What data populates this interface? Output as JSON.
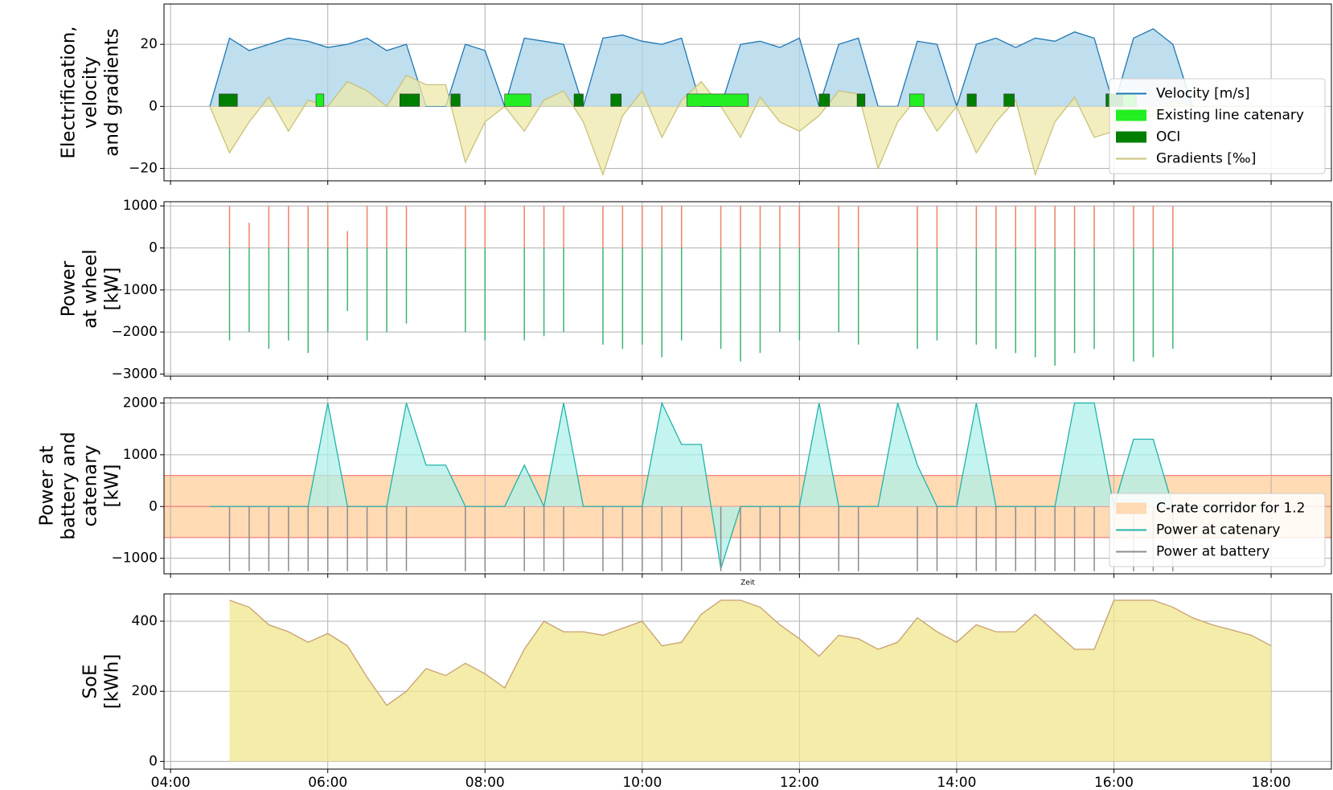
{
  "chart_data": [
    {
      "type": "line",
      "ylabel": [
        "Electrification,",
        "velocity",
        "and gradients"
      ],
      "xlim": [
        "03:55",
        "18:46"
      ],
      "xticks": [
        "04:00",
        "06:00",
        "08:00",
        "10:00",
        "12:00",
        "14:00",
        "16:00",
        "18:00"
      ],
      "ylim": [
        -24,
        33
      ],
      "yticks": [
        {
          "value": -20,
          "label": "−20"
        },
        0,
        20
      ],
      "grid": true,
      "legend": "lower right",
      "x": [
        "04:30",
        "04:45",
        "05:00",
        "05:15",
        "05:30",
        "05:45",
        "06:00",
        "06:15",
        "06:30",
        "06:45",
        "07:00",
        "07:15",
        "07:30",
        "07:45",
        "08:00",
        "08:15",
        "08:30",
        "08:45",
        "09:00",
        "09:15",
        "09:30",
        "09:45",
        "10:00",
        "10:15",
        "10:30",
        "10:45",
        "11:00",
        "11:15",
        "11:30",
        "11:45",
        "12:00",
        "12:15",
        "12:30",
        "12:45",
        "13:00",
        "13:15",
        "13:30",
        "13:45",
        "14:00",
        "14:15",
        "14:30",
        "14:45",
        "15:00",
        "15:15",
        "15:30",
        "15:45",
        "16:00",
        "16:15",
        "16:30",
        "16:45",
        "17:00",
        "17:15",
        "17:30",
        "17:45",
        "18:00"
      ],
      "series": [
        {
          "name": "Velocity [m/s]",
          "style": "area",
          "color": "#1f77b4",
          "fill": "#a9d3e8",
          "values": [
            0,
            22,
            18,
            20,
            22,
            21,
            19,
            20,
            22,
            18,
            20,
            0,
            0,
            20,
            18,
            0,
            22,
            21,
            20,
            0,
            22,
            23,
            21,
            20,
            22,
            0,
            0,
            20,
            21,
            19,
            22,
            0,
            20,
            22,
            0,
            0,
            21,
            20,
            0,
            20,
            22,
            19,
            22,
            21,
            24,
            22,
            0,
            22,
            25,
            20,
            0,
            0,
            0,
            0,
            0
          ]
        },
        {
          "name": "Existing line catenary",
          "style": "spans",
          "color": "#22ee22",
          "height": 4,
          "spans": [
            [
              "05:51",
              "05:57"
            ],
            [
              "08:15",
              "08:35"
            ],
            [
              "10:34",
              "11:21"
            ],
            [
              "13:24",
              "13:35"
            ],
            [
              "15:54",
              "16:17"
            ]
          ]
        },
        {
          "name": "OCI",
          "style": "spans",
          "color": "#007f00",
          "height": 4,
          "spans": [
            [
              "04:37",
              "04:51"
            ],
            [
              "06:55",
              "07:10"
            ],
            [
              "07:34",
              "07:41"
            ],
            [
              "09:08",
              "09:15"
            ],
            [
              "09:36",
              "09:44"
            ],
            [
              "12:15",
              "12:23"
            ],
            [
              "12:44",
              "12:50"
            ],
            [
              "14:08",
              "14:15"
            ],
            [
              "14:36",
              "14:44"
            ],
            [
              "15:54",
              "16:07"
            ]
          ]
        },
        {
          "name": "Gradients [‰]",
          "style": "area",
          "color": "#c9c27a",
          "fill": "#eee8aa",
          "values": [
            0,
            -15,
            -5,
            3,
            -8,
            2,
            0,
            8,
            5,
            0,
            10,
            7,
            7,
            -18,
            -5,
            0,
            -8,
            2,
            5,
            -5,
            -22,
            -3,
            5,
            -10,
            2,
            8,
            0,
            -10,
            3,
            -5,
            -8,
            -3,
            5,
            4,
            -20,
            -5,
            3,
            -8,
            0,
            -15,
            -5,
            2,
            -22,
            -5,
            3,
            -10,
            -8,
            -5,
            -3,
            2,
            0,
            0,
            0,
            0,
            0
          ]
        }
      ]
    },
    {
      "type": "line",
      "ylabel": [
        "Power",
        "at wheel",
        "[kW]"
      ],
      "xlim": [
        "03:55",
        "18:46"
      ],
      "xticks": [
        "04:00",
        "06:00",
        "08:00",
        "10:00",
        "12:00",
        "14:00",
        "16:00",
        "18:00"
      ],
      "ylim": [
        -3050,
        1100
      ],
      "yticks": [
        {
          "value": -3000,
          "label": "−3000"
        },
        {
          "value": -2000,
          "label": "−2000"
        },
        {
          "value": -1000,
          "label": "−1000"
        },
        0,
        1000
      ],
      "grid": true,
      "x": [
        "04:30",
        "04:45",
        "05:00",
        "05:15",
        "05:30",
        "05:45",
        "06:00",
        "06:15",
        "06:30",
        "06:45",
        "07:00",
        "07:15",
        "07:30",
        "07:45",
        "08:00",
        "08:15",
        "08:30",
        "08:45",
        "09:00",
        "09:15",
        "09:30",
        "09:45",
        "10:00",
        "10:15",
        "10:30",
        "10:45",
        "11:00",
        "11:15",
        "11:30",
        "11:45",
        "12:00",
        "12:15",
        "12:30",
        "12:45",
        "13:00",
        "13:15",
        "13:30",
        "13:45",
        "14:00",
        "14:15",
        "14:30",
        "14:45",
        "15:00",
        "15:15",
        "15:30",
        "15:45",
        "16:00",
        "16:15",
        "16:30",
        "16:45",
        "17:00",
        "17:15",
        "17:30",
        "17:45",
        "18:00"
      ],
      "series": [
        {
          "style": "spikes",
          "color": "#f08068",
          "values": [
            0,
            1000,
            600,
            1000,
            1000,
            1000,
            1000,
            400,
            1000,
            1000,
            1000,
            0,
            0,
            1000,
            1000,
            0,
            1000,
            1000,
            1000,
            0,
            1000,
            1000,
            1000,
            1000,
            1000,
            0,
            1000,
            1000,
            1000,
            1000,
            1000,
            0,
            1000,
            1000,
            0,
            0,
            1000,
            1000,
            0,
            1000,
            1000,
            1000,
            1000,
            1000,
            1000,
            1000,
            0,
            1000,
            1000,
            1000,
            0,
            0,
            0,
            0,
            0
          ]
        },
        {
          "style": "spikes",
          "color": "#3cb371",
          "values": [
            0,
            -2200,
            -2000,
            -2400,
            -2200,
            -2500,
            -2000,
            -1500,
            -2200,
            -2000,
            -1800,
            0,
            0,
            -2000,
            -2200,
            0,
            -2200,
            -2100,
            -2000,
            0,
            -2300,
            -2400,
            -2300,
            -2600,
            -2200,
            0,
            -2400,
            -2700,
            -2500,
            -2000,
            -2200,
            0,
            -2000,
            -2300,
            0,
            0,
            -2400,
            -2200,
            0,
            -2300,
            -2400,
            -2500,
            -2600,
            -2800,
            -2500,
            -2400,
            0,
            -2700,
            -2600,
            -2400,
            0,
            0,
            0,
            0,
            0
          ]
        }
      ]
    },
    {
      "type": "line",
      "ylabel": [
        "Power at",
        "battery and",
        "catenary",
        "[kW]"
      ],
      "xlabel": "Zeit",
      "xlim": [
        "03:55",
        "18:46"
      ],
      "xticks": [
        "04:00",
        "06:00",
        "08:00",
        "10:00",
        "12:00",
        "14:00",
        "16:00",
        "18:00"
      ],
      "ylim": [
        -1300,
        2100
      ],
      "yticks": [
        {
          "value": -1000,
          "label": "−1000"
        },
        0,
        1000,
        2000
      ],
      "grid": true,
      "legend": "lower right",
      "corridor": {
        "name": "C-rate corridor for 1.2",
        "color": "#ffdab3",
        "range": [
          -600,
          600
        ]
      },
      "hlines": [
        -600,
        0,
        600
      ],
      "hline_color": "#f08080",
      "x": [
        "04:30",
        "04:45",
        "05:00",
        "05:15",
        "05:30",
        "05:45",
        "06:00",
        "06:15",
        "06:30",
        "06:45",
        "07:00",
        "07:15",
        "07:30",
        "07:45",
        "08:00",
        "08:15",
        "08:30",
        "08:45",
        "09:00",
        "09:15",
        "09:30",
        "09:45",
        "10:00",
        "10:15",
        "10:30",
        "10:45",
        "11:00",
        "11:15",
        "11:30",
        "11:45",
        "12:00",
        "12:15",
        "12:30",
        "12:45",
        "13:00",
        "13:15",
        "13:30",
        "13:45",
        "14:00",
        "14:15",
        "14:30",
        "14:45",
        "15:00",
        "15:15",
        "15:30",
        "15:45",
        "16:00",
        "16:15",
        "16:30",
        "16:45",
        "17:00",
        "17:15",
        "17:30",
        "17:45",
        "18:00"
      ],
      "series": [
        {
          "name": "Power at catenary",
          "style": "area",
          "color": "#20b2aa",
          "fill": "#aff0ea",
          "values": [
            0,
            0,
            0,
            0,
            0,
            0,
            2000,
            0,
            0,
            0,
            2000,
            800,
            800,
            0,
            0,
            0,
            800,
            0,
            2000,
            0,
            0,
            0,
            0,
            2000,
            1200,
            1200,
            -1200,
            0,
            0,
            0,
            0,
            2000,
            0,
            0,
            0,
            2000,
            800,
            0,
            0,
            2000,
            0,
            0,
            0,
            0,
            2000,
            2000,
            0,
            1300,
            1300,
            0,
            0,
            0,
            0,
            0,
            0
          ]
        },
        {
          "name": "Power at battery",
          "style": "spikes",
          "color": "#8c8c8c",
          "values": [
            0,
            -1250,
            -1250,
            -1250,
            -1250,
            -1250,
            -1250,
            -1250,
            -1250,
            -1250,
            -1250,
            0,
            0,
            -1250,
            -1250,
            0,
            -1250,
            -1250,
            -1250,
            0,
            -1250,
            -1250,
            -1250,
            -1250,
            -1250,
            0,
            -1250,
            -1250,
            -1250,
            -1250,
            -1250,
            0,
            -1250,
            -1250,
            0,
            0,
            -1250,
            -1250,
            0,
            -1250,
            -1250,
            -1250,
            -1250,
            -1250,
            -1250,
            -1250,
            0,
            -1250,
            -1250,
            -1250,
            0,
            0,
            0,
            0,
            0
          ]
        }
      ]
    },
    {
      "type": "line",
      "ylabel": [
        "SoE",
        "[kWh]"
      ],
      "show_xtick_labels": true,
      "xlim": [
        "03:55",
        "18:46"
      ],
      "xticks": [
        "04:00",
        "06:00",
        "08:00",
        "10:00",
        "12:00",
        "14:00",
        "16:00",
        "18:00"
      ],
      "ylim": [
        -22,
        478
      ],
      "yticks": [
        0,
        200,
        400
      ],
      "grid": true,
      "x": [
        "04:30",
        "04:45",
        "05:00",
        "05:15",
        "05:30",
        "05:45",
        "06:00",
        "06:15",
        "06:30",
        "06:45",
        "07:00",
        "07:15",
        "07:30",
        "07:45",
        "08:00",
        "08:15",
        "08:30",
        "08:45",
        "09:00",
        "09:15",
        "09:30",
        "09:45",
        "10:00",
        "10:15",
        "10:30",
        "10:45",
        "11:00",
        "11:15",
        "11:30",
        "11:45",
        "12:00",
        "12:15",
        "12:30",
        "12:45",
        "13:00",
        "13:15",
        "13:30",
        "13:45",
        "14:00",
        "14:15",
        "14:30",
        "14:45",
        "15:00",
        "15:15",
        "15:30",
        "15:45",
        "16:00",
        "16:15",
        "16:30",
        "16:45",
        "17:00",
        "17:15",
        "17:30",
        "17:45",
        "18:00"
      ],
      "series": [
        {
          "style": "area",
          "color": "#c8a070",
          "fill": "#f0e68c",
          "values": [
            null,
            460,
            440,
            390,
            370,
            340,
            365,
            330,
            240,
            160,
            200,
            265,
            245,
            280,
            250,
            210,
            320,
            400,
            370,
            370,
            360,
            380,
            400,
            330,
            340,
            420,
            460,
            460,
            440,
            390,
            350,
            300,
            360,
            350,
            320,
            340,
            410,
            370,
            340,
            390,
            370,
            370,
            420,
            370,
            320,
            320,
            460,
            460,
            460,
            440,
            410,
            390,
            375,
            360,
            330
          ]
        }
      ]
    }
  ]
}
